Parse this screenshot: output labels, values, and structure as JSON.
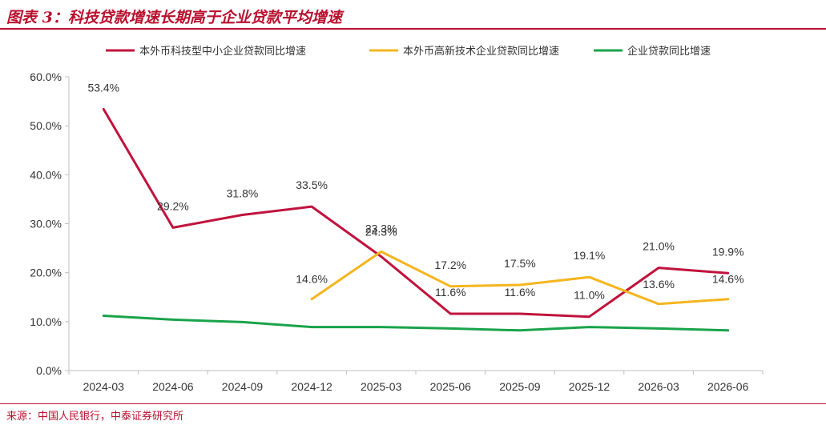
{
  "title": "图表 3：科技贷款增速长期高于企业贷款平均增速",
  "source": "来源：中国人民银行，中泰证券研究所",
  "chart_data": {
    "type": "line",
    "categories": [
      "2024-03",
      "2024-06",
      "2024-09",
      "2024-12",
      "2025-03",
      "2025-06",
      "2025-09",
      "2025-12",
      "2026-03",
      "2026-06"
    ],
    "y_ticks": [
      "0.0%",
      "10.0%",
      "20.0%",
      "30.0%",
      "40.0%",
      "50.0%",
      "60.0%"
    ],
    "ylim": [
      0,
      60
    ],
    "legend_position": "top",
    "series": [
      {
        "name": "本外币科技型中小企业贷款同比增速",
        "color": "#c0133c",
        "values": [
          53.4,
          29.2,
          31.8,
          33.5,
          23.3,
          11.6,
          11.6,
          11.0,
          21.0,
          19.9
        ],
        "labels": [
          "53.4%",
          "29.2%",
          "31.8%",
          "33.5%",
          "23.3%",
          "11.6%",
          "11.6%",
          "11.0%",
          "21.0%",
          "19.9%"
        ]
      },
      {
        "name": "本外币高新技术企业贷款同比增速",
        "color": "#f5b51f",
        "values": [
          null,
          null,
          null,
          14.6,
          24.3,
          17.2,
          17.5,
          19.1,
          13.6,
          14.6
        ],
        "labels": [
          null,
          null,
          null,
          "14.6%",
          "24.3%",
          "17.2%",
          "17.5%",
          "19.1%",
          "13.6%",
          "14.6%"
        ]
      },
      {
        "name": "企业贷款同比增速",
        "color": "#1aa34a",
        "values": [
          11.2,
          10.4,
          9.9,
          8.9,
          8.9,
          8.6,
          8.2,
          8.9,
          8.6,
          8.2
        ],
        "labels": [
          null,
          null,
          null,
          null,
          null,
          null,
          null,
          null,
          null,
          null
        ]
      }
    ]
  }
}
